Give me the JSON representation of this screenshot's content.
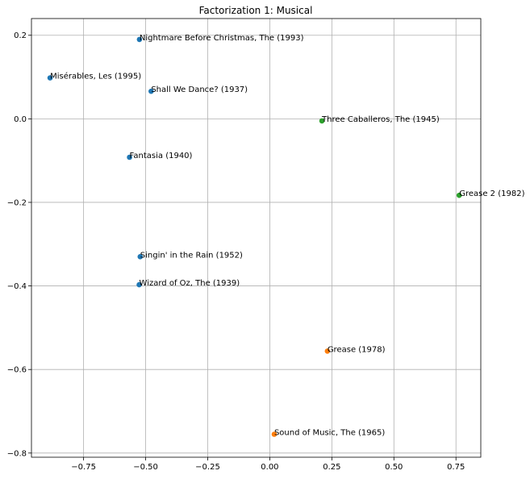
{
  "chart_data": {
    "type": "scatter",
    "title": "Factorization 1: Musical",
    "xlabel": "",
    "ylabel": "",
    "xlim": [
      -0.96,
      0.85
    ],
    "ylim": [
      -0.81,
      0.24
    ],
    "grid": true,
    "x_ticks": [
      -0.75,
      -0.5,
      -0.25,
      0.0,
      0.25,
      0.5,
      0.75
    ],
    "x_tick_labels": [
      "−0.75",
      "−0.50",
      "−0.25",
      "0.00",
      "0.25",
      "0.50",
      "0.75"
    ],
    "y_ticks": [
      0.2,
      0.0,
      -0.2,
      -0.4,
      -0.6,
      -0.8
    ],
    "y_tick_labels": [
      "0.2",
      "0.0",
      "−0.2",
      "−0.4",
      "−0.6",
      "−0.8"
    ],
    "colors": {
      "blue": "#1f77b4",
      "orange": "#ff7f0e",
      "green": "#2ca02c"
    },
    "points": [
      {
        "label": "Nightmare Before Christmas, The (1993)",
        "x": -0.525,
        "y": 0.19,
        "color": "#1f77b4"
      },
      {
        "label": "Misérables, Les (1995)",
        "x": -0.885,
        "y": 0.098,
        "color": "#1f77b4"
      },
      {
        "label": "Shall We Dance? (1937)",
        "x": -0.478,
        "y": 0.066,
        "color": "#1f77b4"
      },
      {
        "label": "Fantasia (1940)",
        "x": -0.565,
        "y": -0.092,
        "color": "#1f77b4"
      },
      {
        "label": "Singin' in the Rain (1952)",
        "x": -0.522,
        "y": -0.33,
        "color": "#1f77b4"
      },
      {
        "label": "Wizard of Oz, The (1939)",
        "x": -0.526,
        "y": -0.397,
        "color": "#1f77b4"
      },
      {
        "label": "Three Caballeros, The (1945)",
        "x": 0.21,
        "y": -0.005,
        "color": "#2ca02c"
      },
      {
        "label": "Grease 2 (1982)",
        "x": 0.763,
        "y": -0.183,
        "color": "#2ca02c"
      },
      {
        "label": "Grease (1978)",
        "x": 0.232,
        "y": -0.556,
        "color": "#ff7f0e"
      },
      {
        "label": "Sound of Music, The (1965)",
        "x": 0.018,
        "y": -0.755,
        "color": "#ff7f0e"
      }
    ]
  }
}
